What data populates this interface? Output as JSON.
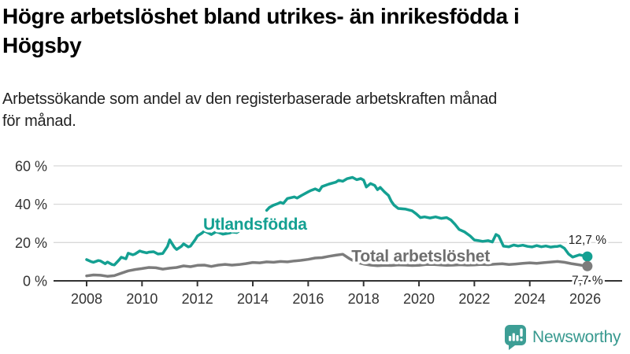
{
  "header": {
    "title": "Högre arbetslöshet bland utrikes- än inrikesfödda i\nHögsby",
    "subtitle": "Arbetssökande som andel av den registerbaserade arbetskraften månad\nför månad."
  },
  "chart_data": {
    "type": "line",
    "title": "Högre arbetslöshet bland utrikes- än inrikesfödda i Högsby",
    "subtitle": "Arbetssökande som andel av den registerbaserade arbetskraften månad för månad.",
    "unit": "%",
    "xlabel": "",
    "ylabel": "",
    "grid": "horizontal",
    "xlim": [
      2006.8,
      2027.4
    ],
    "ylim": [
      0,
      62
    ],
    "x_ticks": [
      2008,
      2010,
      2012,
      2014,
      2016,
      2018,
      2020,
      2022,
      2024,
      2026
    ],
    "x_tick_labels": [
      "2008",
      "2010",
      "2012",
      "2014",
      "2016",
      "2018",
      "2020",
      "2022",
      "2024",
      "2026"
    ],
    "y_ticks": [
      0,
      20,
      40,
      60
    ],
    "y_tick_labels": [
      "0 %",
      "20 %",
      "40 %",
      "60 %"
    ],
    "axis_color": "#333333",
    "grid_color": "#d9d9d9",
    "series": [
      {
        "name": "Utlandsfödda",
        "color": "#14a092",
        "end_value": 12.7,
        "end_label": "12,7 %",
        "label_anchor": {
          "year": 2014.08,
          "value": 29.8
        },
        "points": [
          [
            2008.0,
            11.1
          ],
          [
            2008.17,
            10.0
          ],
          [
            2008.25,
            9.7
          ],
          [
            2008.42,
            10.6
          ],
          [
            2008.5,
            10.4
          ],
          [
            2008.67,
            8.9
          ],
          [
            2008.75,
            9.8
          ],
          [
            2008.92,
            8.5
          ],
          [
            2009.0,
            8.3
          ],
          [
            2009.17,
            10.9
          ],
          [
            2009.25,
            12.3
          ],
          [
            2009.42,
            11.5
          ],
          [
            2009.5,
            14.4
          ],
          [
            2009.67,
            13.6
          ],
          [
            2009.75,
            14.0
          ],
          [
            2009.92,
            15.6
          ],
          [
            2010.0,
            15.2
          ],
          [
            2010.17,
            14.6
          ],
          [
            2010.25,
            15.0
          ],
          [
            2010.42,
            15.2
          ],
          [
            2010.58,
            14.0
          ],
          [
            2010.75,
            14.3
          ],
          [
            2010.92,
            18.0
          ],
          [
            2011.0,
            21.4
          ],
          [
            2011.17,
            17.5
          ],
          [
            2011.25,
            16.4
          ],
          [
            2011.42,
            18.0
          ],
          [
            2011.5,
            19.3
          ],
          [
            2011.67,
            17.7
          ],
          [
            2011.75,
            18.1
          ],
          [
            2011.92,
            21.5
          ],
          [
            2012.0,
            23.4
          ],
          [
            2012.17,
            25.0
          ],
          [
            2012.25,
            26.0
          ],
          [
            2012.42,
            24.8
          ],
          [
            2012.5,
            24.2
          ],
          [
            2012.67,
            25.6
          ],
          [
            2012.75,
            25.3
          ],
          [
            2012.92,
            24.4
          ],
          [
            2013.0,
            24.6
          ],
          [
            2013.17,
            25.0
          ],
          [
            2013.25,
            25.5
          ],
          [
            2013.42,
            25.2
          ],
          [
            2013.5,
            25.9
          ],
          null,
          [
            2014.5,
            36.8
          ],
          [
            2014.6,
            38.3
          ],
          [
            2014.75,
            39.5
          ],
          [
            2014.9,
            40.3
          ],
          [
            2015.0,
            41.0
          ],
          [
            2015.1,
            40.4
          ],
          [
            2015.25,
            43.0
          ],
          [
            2015.5,
            43.8
          ],
          [
            2015.6,
            43.2
          ],
          [
            2015.75,
            44.5
          ],
          [
            2016.0,
            46.5
          ],
          [
            2016.1,
            47.2
          ],
          [
            2016.25,
            48.0
          ],
          [
            2016.4,
            47.0
          ],
          [
            2016.5,
            49.2
          ],
          [
            2016.75,
            50.5
          ],
          [
            2017.0,
            51.5
          ],
          [
            2017.1,
            52.5
          ],
          [
            2017.25,
            52.0
          ],
          [
            2017.4,
            53.3
          ],
          [
            2017.6,
            54.0
          ],
          [
            2017.75,
            52.8
          ],
          [
            2017.9,
            53.4
          ],
          [
            2018.0,
            52.6
          ],
          [
            2018.1,
            49.0
          ],
          [
            2018.25,
            50.8
          ],
          [
            2018.4,
            49.8
          ],
          [
            2018.5,
            47.6
          ],
          [
            2018.6,
            48.8
          ],
          [
            2018.75,
            46.5
          ],
          [
            2018.9,
            44.5
          ],
          [
            2019.0,
            41.5
          ],
          [
            2019.1,
            39.5
          ],
          [
            2019.25,
            37.8
          ],
          [
            2019.5,
            37.5
          ],
          [
            2019.75,
            36.6
          ],
          [
            2019.9,
            35.0
          ],
          [
            2020.05,
            33.0
          ],
          [
            2020.2,
            33.4
          ],
          [
            2020.4,
            32.8
          ],
          [
            2020.6,
            33.4
          ],
          [
            2020.8,
            32.6
          ],
          [
            2021.0,
            33.0
          ],
          [
            2021.15,
            31.8
          ],
          [
            2021.3,
            29.5
          ],
          [
            2021.45,
            26.8
          ],
          [
            2021.65,
            25.5
          ],
          [
            2021.85,
            23.4
          ],
          [
            2022.0,
            21.3
          ],
          [
            2022.15,
            21.0
          ],
          [
            2022.3,
            20.6
          ],
          [
            2022.5,
            21.0
          ],
          [
            2022.65,
            20.3
          ],
          [
            2022.78,
            24.2
          ],
          [
            2022.88,
            23.4
          ],
          [
            2023.05,
            18.1
          ],
          [
            2023.25,
            17.8
          ],
          [
            2023.42,
            18.7
          ],
          [
            2023.58,
            18.2
          ],
          [
            2023.75,
            18.6
          ],
          [
            2023.92,
            18.0
          ],
          [
            2024.08,
            17.7
          ],
          [
            2024.25,
            18.4
          ],
          [
            2024.42,
            17.8
          ],
          [
            2024.58,
            18.2
          ],
          [
            2024.75,
            17.6
          ],
          [
            2024.9,
            17.9
          ],
          [
            2025.0,
            18.0
          ],
          [
            2025.1,
            18.3
          ],
          [
            2025.25,
            17.0
          ],
          [
            2025.4,
            14.0
          ],
          [
            2025.55,
            12.4
          ],
          [
            2025.8,
            13.6
          ],
          [
            2026.0,
            12.9
          ],
          [
            2026.08,
            12.7
          ]
        ]
      },
      {
        "name": "Total arbetslöshet",
        "color": "#7c7c7c",
        "label_color": "#6e6e6e",
        "end_value": 7.7,
        "end_label": "7,7 %",
        "label_anchor": {
          "year": 2020.06,
          "value": 13.1
        },
        "points": [
          [
            2008.0,
            2.6
          ],
          [
            2008.25,
            3.1
          ],
          [
            2008.5,
            2.9
          ],
          [
            2008.75,
            2.4
          ],
          [
            2009.0,
            2.7
          ],
          [
            2009.25,
            4.0
          ],
          [
            2009.5,
            5.2
          ],
          [
            2009.75,
            5.9
          ],
          [
            2010.0,
            6.4
          ],
          [
            2010.25,
            7.0
          ],
          [
            2010.5,
            6.8
          ],
          [
            2010.75,
            6.1
          ],
          [
            2011.0,
            6.6
          ],
          [
            2011.25,
            7.0
          ],
          [
            2011.5,
            7.8
          ],
          [
            2011.75,
            7.4
          ],
          [
            2012.0,
            8.1
          ],
          [
            2012.25,
            8.2
          ],
          [
            2012.5,
            7.5
          ],
          [
            2012.75,
            8.2
          ],
          [
            2013.0,
            8.6
          ],
          [
            2013.25,
            8.2
          ],
          [
            2013.5,
            8.5
          ],
          [
            2013.75,
            9.0
          ],
          [
            2014.0,
            9.6
          ],
          [
            2014.25,
            9.4
          ],
          [
            2014.5,
            9.9
          ],
          [
            2014.75,
            9.7
          ],
          [
            2015.0,
            10.1
          ],
          [
            2015.25,
            9.9
          ],
          [
            2015.5,
            10.4
          ],
          [
            2015.75,
            10.7
          ],
          [
            2016.0,
            11.2
          ],
          [
            2016.25,
            11.9
          ],
          [
            2016.5,
            12.1
          ],
          [
            2016.75,
            12.8
          ],
          [
            2017.0,
            13.4
          ],
          [
            2017.25,
            13.9
          ],
          [
            2017.5,
            11.5
          ],
          [
            2017.75,
            9.6
          ],
          [
            2018.0,
            8.8
          ],
          [
            2018.25,
            8.2
          ],
          [
            2018.5,
            7.9
          ],
          [
            2018.75,
            8.1
          ],
          [
            2019.0,
            8.0
          ],
          [
            2019.25,
            8.3
          ],
          [
            2019.5,
            8.2
          ],
          [
            2019.75,
            8.0
          ],
          [
            2020.0,
            8.1
          ],
          [
            2020.25,
            8.5
          ],
          [
            2020.5,
            8.6
          ],
          [
            2020.75,
            8.3
          ],
          [
            2021.0,
            8.1
          ],
          [
            2021.25,
            8.2
          ],
          [
            2021.5,
            8.4
          ],
          [
            2021.75,
            8.2
          ],
          [
            2022.0,
            8.3
          ],
          [
            2022.25,
            8.6
          ],
          [
            2022.5,
            8.4
          ],
          [
            2022.75,
            8.7
          ],
          [
            2023.0,
            8.9
          ],
          [
            2023.25,
            8.5
          ],
          [
            2023.5,
            8.8
          ],
          [
            2023.75,
            9.1
          ],
          [
            2024.0,
            9.4
          ],
          [
            2024.25,
            9.1
          ],
          [
            2024.5,
            9.5
          ],
          [
            2024.75,
            9.8
          ],
          [
            2025.0,
            10.1
          ],
          [
            2025.25,
            9.7
          ],
          [
            2025.5,
            9.0
          ],
          [
            2025.75,
            8.4
          ],
          [
            2026.0,
            7.8
          ],
          [
            2026.08,
            7.7
          ]
        ]
      }
    ]
  },
  "logo": {
    "text": "Newsworthy",
    "color": "#37998f"
  }
}
